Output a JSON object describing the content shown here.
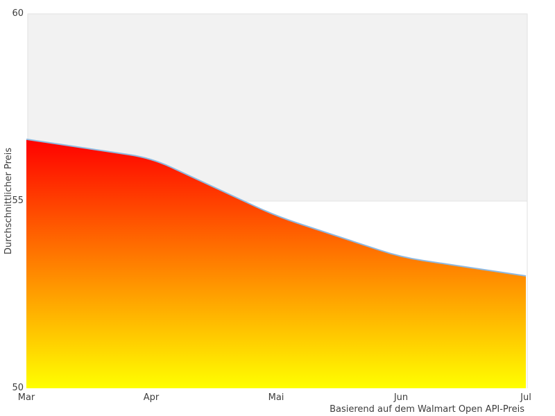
{
  "chart_data": {
    "type": "area",
    "x_tick_labels": [
      "Mar",
      "Apr",
      "Mai",
      "Jun",
      "Jul"
    ],
    "values": [
      56.65,
      56.15,
      54.6,
      53.5,
      53.0
    ],
    "ylabel": "Durchschnittlicher Preis",
    "caption": "Basierend auf dem Walmart Open API-Preis",
    "y_tick_labels": [
      "60",
      "55",
      "50"
    ],
    "yticks": [
      60,
      55,
      50
    ],
    "ylim": [
      50,
      60
    ],
    "legend": "none",
    "grid": "horizontal-band",
    "band": {
      "from": 55,
      "to": 60,
      "fill": "#f2f2f2",
      "border": "#e1e1e1"
    },
    "plot_border_color": "#e1e1e1",
    "line_color": "#8fb9e0",
    "fill_gradient": {
      "top": "#ff0000",
      "bottom": "#ffff00"
    }
  }
}
